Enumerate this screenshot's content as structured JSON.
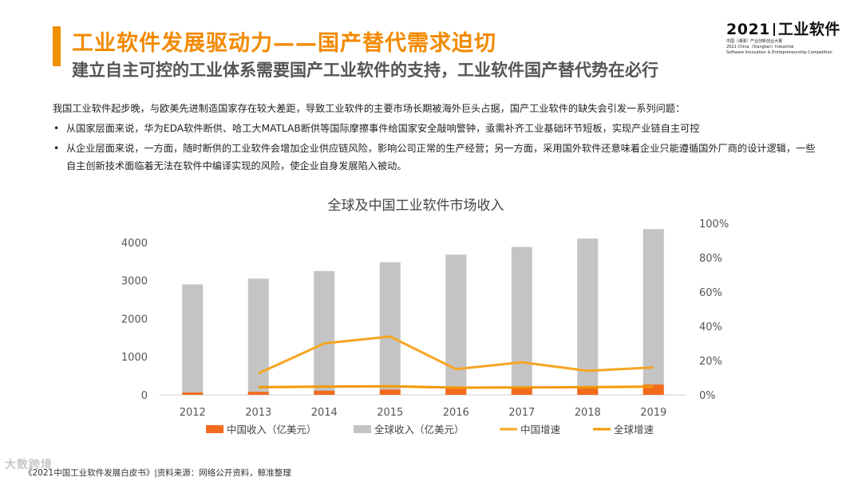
{
  "header": {
    "title": "工业软件发展驱动力——国产替代需求迫切",
    "subtitle": "建立自主可控的工业体系需要国产工业软件的支持，工业软件国产替代势在必行"
  },
  "logo": {
    "year": "2021",
    "name": "工业软件",
    "line1": "中国（湘潭）产业创新创业大赛",
    "line2": "2021 China（Xiangtan）Industrial",
    "line3": "Software Innovation & Entrepreneurship Competition"
  },
  "body": {
    "intro": "我国工业软件起步晚，与欧美先进制造国家存在较大差距，导致工业软件的主要市场长期被海外巨头占据，国产工业软件的缺失会引发一系列问题：",
    "bullets": [
      "从国家层面来说，华为EDA软件断供、哈工大MATLAB断供等国际摩擦事件给国家安全敲响警钟，亟需补齐工业基础环节短板，实现产业链自主可控",
      "从企业层面来说，一方面，随时断供的工业软件会增加企业供应链风险，影响公司正常的生产经营；另一方面，采用国外软件还意味着企业只能遵循国外厂商的设计逻辑，一些自主创新技术面临着无法在软件中编译实现的风险，使企业自身发展陷入被动。"
    ]
  },
  "colors": {
    "accent": "#f29100",
    "china_revenue": "#f26b1d",
    "global_revenue": "#c4c4c4",
    "china_growth": "#f5a623",
    "global_growth": "#f39800"
  },
  "chart_data": {
    "type": "bar",
    "title": "全球及中国工业软件市场收入",
    "categories": [
      "2012",
      "2013",
      "2014",
      "2015",
      "2016",
      "2017",
      "2018",
      "2019"
    ],
    "y_left": {
      "ticks": [
        "0",
        "1000",
        "2000",
        "3000",
        "4000"
      ],
      "range": [
        0,
        4500
      ]
    },
    "y_right": {
      "ticks": [
        "0%",
        "20%",
        "40%",
        "60%",
        "80%",
        "100%"
      ],
      "range": [
        0,
        100
      ]
    },
    "series": [
      {
        "name": "中国收入（亿美元）",
        "kind": "bar",
        "axis": "left",
        "values": [
          60,
          80,
          110,
          140,
          170,
          200,
          230,
          270
        ]
      },
      {
        "name": "全球收入（亿美元）",
        "kind": "bar",
        "axis": "left",
        "values": [
          2900,
          3050,
          3250,
          3480,
          3680,
          3880,
          4100,
          4350
        ]
      },
      {
        "name": "中国增速",
        "kind": "line",
        "axis": "right",
        "values": [
          null,
          12.5,
          30,
          34,
          15,
          19,
          14,
          16
        ]
      },
      {
        "name": "全球增速",
        "kind": "line",
        "axis": "right",
        "values": [
          null,
          4.5,
          4.8,
          5,
          4.2,
          4.3,
          4.5,
          4.8
        ]
      }
    ]
  },
  "footer": {
    "source": "《2021中国工业软件发展白皮书》|资料来源：网络公开资料，鲸准整理",
    "watermark": "大数跨境"
  }
}
